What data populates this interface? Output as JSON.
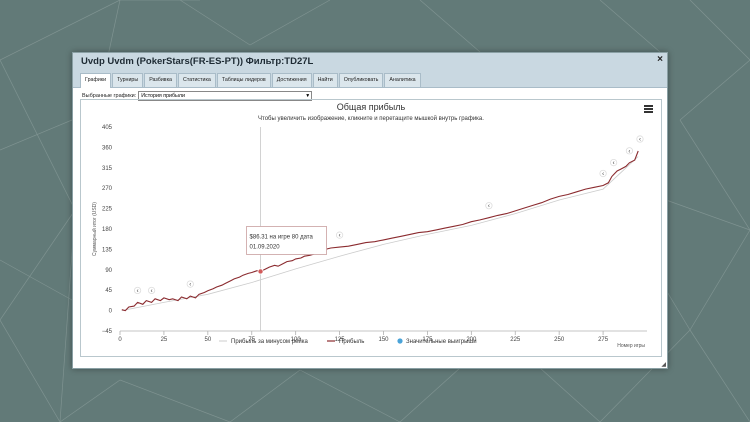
{
  "window": {
    "title": "Uvdp Uvdm (PokerStars(FR-ES-PT)) Фильтр:TD27L",
    "close_symbol": "×"
  },
  "tabs": [
    {
      "label": "Графики",
      "active": true
    },
    {
      "label": "Турниры",
      "active": false
    },
    {
      "label": "Разбивка",
      "active": false
    },
    {
      "label": "Статистика",
      "active": false
    },
    {
      "label": "Таблицы лидеров",
      "active": false
    },
    {
      "label": "Достижения",
      "active": false
    },
    {
      "label": "Найти",
      "active": false
    },
    {
      "label": "Опубликовать",
      "active": false
    },
    {
      "label": "Аналитика",
      "active": false
    }
  ],
  "selector": {
    "label": "Выбранные графики:",
    "value": "История прибыли"
  },
  "chart_data": {
    "type": "line",
    "title": "Общая прибыль",
    "subtitle": "Чтобы увеличить изображение, кликните и перетащите мышкой внутрь графика.",
    "xlabel": "Номер игры",
    "ylabel": "Суммарный итог (USD)",
    "xlim": [
      0,
      300
    ],
    "ylim": [
      -45,
      405
    ],
    "x_ticks": [
      0,
      25,
      50,
      75,
      100,
      125,
      150,
      175,
      200,
      225,
      250,
      275
    ],
    "y_ticks": [
      405,
      360,
      315,
      270,
      225,
      180,
      135,
      90,
      45,
      0,
      -45
    ],
    "grid": false,
    "legend": [
      {
        "name": "Прибыль за минусом рейка",
        "color": "#cccccc",
        "marker": "line"
      },
      {
        "name": "Прибыль",
        "color": "#8b2b2f",
        "marker": "line"
      },
      {
        "name": "Значительные выигрыши",
        "color": "#4aa3d8",
        "marker": "circle"
      }
    ],
    "series": [
      {
        "name": "Прибыль",
        "color": "#8b2b2f",
        "x": [
          1,
          3,
          5,
          8,
          10,
          13,
          15,
          18,
          20,
          23,
          25,
          28,
          30,
          33,
          35,
          38,
          40,
          43,
          45,
          48,
          50,
          53,
          55,
          58,
          60,
          63,
          65,
          68,
          70,
          73,
          75,
          78,
          80,
          83,
          85,
          88,
          90,
          93,
          95,
          98,
          100,
          103,
          105,
          108,
          110,
          113,
          115,
          118,
          120,
          125,
          130,
          135,
          140,
          145,
          150,
          155,
          160,
          165,
          170,
          175,
          180,
          185,
          190,
          195,
          200,
          205,
          210,
          215,
          220,
          225,
          230,
          235,
          240,
          245,
          250,
          255,
          260,
          265,
          270,
          275,
          278,
          280,
          283,
          285,
          288,
          290,
          293,
          295
        ],
        "y": [
          2,
          0,
          8,
          10,
          18,
          14,
          22,
          18,
          26,
          22,
          28,
          24,
          26,
          22,
          30,
          26,
          32,
          28,
          36,
          40,
          44,
          48,
          52,
          56,
          60,
          66,
          70,
          74,
          78,
          82,
          84,
          88,
          86,
          92,
          96,
          100,
          98,
          104,
          108,
          110,
          114,
          116,
          120,
          122,
          124,
          128,
          132,
          136,
          138,
          140,
          142,
          146,
          150,
          152,
          156,
          160,
          164,
          168,
          172,
          174,
          178,
          182,
          186,
          190,
          196,
          200,
          205,
          210,
          214,
          220,
          226,
          232,
          238,
          246,
          252,
          256,
          262,
          268,
          272,
          276,
          282,
          296,
          308,
          312,
          318,
          326,
          332,
          352
        ]
      },
      {
        "name": "Прибыль за минусом рейка",
        "color": "#cccccc",
        "x": [
          1,
          25,
          50,
          75,
          100,
          125,
          150,
          175,
          200,
          225,
          250,
          275,
          295
        ],
        "y": [
          0,
          18,
          36,
          62,
          92,
          120,
          146,
          168,
          188,
          214,
          244,
          268,
          340
        ]
      }
    ],
    "big_wins_x": [
      10,
      18,
      40,
      125,
      210,
      275,
      281,
      290,
      296
    ],
    "tooltip": {
      "x": 80,
      "y": 86.31,
      "text_line1": "$86.31 на игре 80 дата",
      "text_line2": "01.09.2020"
    }
  }
}
